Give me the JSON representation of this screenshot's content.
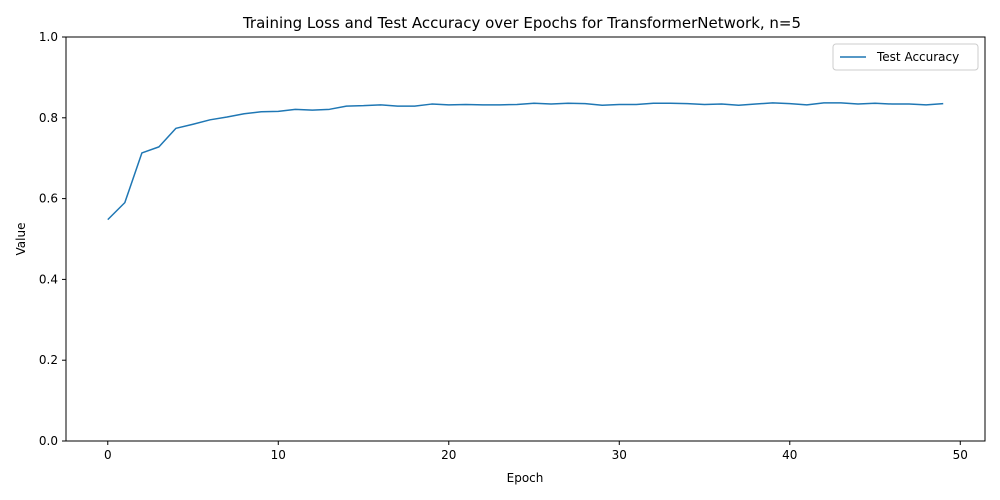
{
  "chart_data": {
    "type": "line",
    "title": "Training Loss and Test Accuracy over Epochs for TransformerNetwork, n=5",
    "xlabel": "Epoch",
    "ylabel": "Value",
    "xlim": [
      -2.45,
      51.45
    ],
    "ylim": [
      0,
      1
    ],
    "xticks": [
      0,
      10,
      20,
      30,
      40,
      50
    ],
    "yticks": [
      0.0,
      0.2,
      0.4,
      0.6,
      0.8,
      1.0
    ],
    "xtick_labels": [
      "0",
      "10",
      "20",
      "30",
      "40",
      "50"
    ],
    "ytick_labels": [
      "0.0",
      "0.2",
      "0.4",
      "0.6",
      "0.8",
      "1.0"
    ],
    "grid": false,
    "legend_position": "top-right",
    "series": [
      {
        "name": "Test Accuracy",
        "color": "#1f77b4",
        "x": [
          0,
          1,
          2,
          3,
          4,
          5,
          6,
          7,
          8,
          9,
          10,
          11,
          12,
          13,
          14,
          15,
          16,
          17,
          18,
          19,
          20,
          21,
          22,
          23,
          24,
          25,
          26,
          27,
          28,
          29,
          30,
          31,
          32,
          33,
          34,
          35,
          36,
          37,
          38,
          39,
          40,
          41,
          42,
          43,
          44,
          45,
          46,
          47,
          48,
          49
        ],
        "values": [
          0.548,
          0.59,
          0.713,
          0.728,
          0.774,
          0.784,
          0.795,
          0.802,
          0.81,
          0.815,
          0.816,
          0.821,
          0.819,
          0.821,
          0.829,
          0.83,
          0.832,
          0.829,
          0.829,
          0.834,
          0.832,
          0.833,
          0.832,
          0.832,
          0.833,
          0.836,
          0.834,
          0.836,
          0.835,
          0.831,
          0.833,
          0.833,
          0.836,
          0.836,
          0.835,
          0.833,
          0.834,
          0.831,
          0.834,
          0.837,
          0.835,
          0.832,
          0.837,
          0.837,
          0.834,
          0.836,
          0.834,
          0.834,
          0.832,
          0.835
        ]
      }
    ]
  }
}
